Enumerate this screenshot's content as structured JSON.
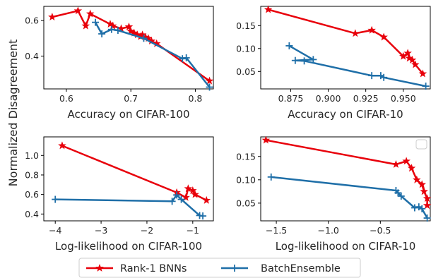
{
  "figure": {
    "ylabel": "Normalized Disagreement"
  },
  "legend": {
    "position": "bottom-center",
    "entries": [
      {
        "label": "Rank-1 BNNs",
        "color": "#e8000b",
        "marker": "star"
      },
      {
        "label": "BatchEnsemble",
        "color": "#1f6fa8",
        "marker": "plus"
      }
    ]
  },
  "chart_data": [
    {
      "type": "line",
      "xlabel": "Accuracy on CIFAR-100",
      "ylabel": "Normalized Disagreement",
      "xlim": [
        0.565,
        0.828
      ],
      "ylim": [
        0.215,
        0.68
      ],
      "xticks": [
        {
          "v": 0.6,
          "label": "0.6"
        },
        {
          "v": 0.7,
          "label": "0.7"
        },
        {
          "v": 0.8,
          "label": "0.8"
        }
      ],
      "yticks": [
        {
          "v": 0.4,
          "label": "0.4"
        },
        {
          "v": 0.6,
          "label": "0.6"
        }
      ],
      "legend_box": false,
      "series": [
        {
          "name": "Rank-1 BNNs",
          "color": "#e8000b",
          "marker": "star",
          "points": [
            [
              0.578,
              0.62
            ],
            [
              0.618,
              0.655
            ],
            [
              0.63,
              0.57
            ],
            [
              0.637,
              0.638
            ],
            [
              0.668,
              0.58
            ],
            [
              0.672,
              0.57
            ],
            [
              0.685,
              0.555
            ],
            [
              0.697,
              0.565
            ],
            [
              0.7,
              0.54
            ],
            [
              0.705,
              0.53
            ],
            [
              0.71,
              0.52
            ],
            [
              0.715,
              0.51
            ],
            [
              0.718,
              0.52
            ],
            [
              0.723,
              0.505
            ],
            [
              0.727,
              0.5
            ],
            [
              0.732,
              0.485
            ],
            [
              0.74,
              0.47
            ],
            [
              0.822,
              0.26
            ]
          ]
        },
        {
          "name": "BatchEnsemble",
          "color": "#1f6fa8",
          "marker": "plus",
          "points": [
            [
              0.645,
              0.59
            ],
            [
              0.655,
              0.525
            ],
            [
              0.67,
              0.55
            ],
            [
              0.68,
              0.545
            ],
            [
              0.72,
              0.5
            ],
            [
              0.78,
              0.385
            ],
            [
              0.786,
              0.39
            ],
            [
              0.822,
              0.225
            ]
          ]
        }
      ]
    },
    {
      "type": "line",
      "xlabel": "Accuracy on CIFAR-10",
      "ylabel": "",
      "xlim": [
        0.855,
        0.968
      ],
      "ylim": [
        0.012,
        0.192
      ],
      "xticks": [
        {
          "v": 0.875,
          "label": "0.875"
        },
        {
          "v": 0.9,
          "label": "0.900"
        },
        {
          "v": 0.925,
          "label": "0.925"
        },
        {
          "v": 0.95,
          "label": "0.950"
        }
      ],
      "yticks": [
        {
          "v": 0.05,
          "label": "0.05"
        },
        {
          "v": 0.1,
          "label": "0.10"
        },
        {
          "v": 0.15,
          "label": "0.15"
        }
      ],
      "legend_box": false,
      "series": [
        {
          "name": "Rank-1 BNNs",
          "color": "#e8000b",
          "marker": "star",
          "points": [
            [
              0.86,
              0.185
            ],
            [
              0.918,
              0.133
            ],
            [
              0.929,
              0.14
            ],
            [
              0.937,
              0.125
            ],
            [
              0.95,
              0.083
            ],
            [
              0.953,
              0.09
            ],
            [
              0.954,
              0.079
            ],
            [
              0.956,
              0.075
            ],
            [
              0.958,
              0.065
            ],
            [
              0.963,
              0.045
            ]
          ]
        },
        {
          "name": "BatchEnsemble",
          "color": "#1f6fa8",
          "marker": "plus",
          "points": [
            [
              0.874,
              0.106
            ],
            [
              0.89,
              0.076
            ],
            [
              0.878,
              0.074
            ],
            [
              0.884,
              0.073
            ],
            [
              0.929,
              0.041
            ],
            [
              0.935,
              0.041
            ],
            [
              0.937,
              0.037
            ],
            [
              0.965,
              0.018
            ]
          ]
        }
      ]
    },
    {
      "type": "line",
      "xlabel": "Log-likelihood on CIFAR-100",
      "ylabel": "",
      "xlim": [
        -4.25,
        -0.55
      ],
      "ylim": [
        0.33,
        1.19
      ],
      "xticks": [
        {
          "v": -4,
          "label": "−4"
        },
        {
          "v": -3,
          "label": "−3"
        },
        {
          "v": -2,
          "label": "−2"
        },
        {
          "v": -1,
          "label": "−1"
        }
      ],
      "yticks": [
        {
          "v": 0.4,
          "label": "0.4"
        },
        {
          "v": 0.6,
          "label": "0.6"
        },
        {
          "v": 0.8,
          "label": "0.8"
        },
        {
          "v": 1.0,
          "label": "1.0"
        }
      ],
      "legend_box": false,
      "series": [
        {
          "name": "Rank-1 BNNs",
          "color": "#e8000b",
          "marker": "star",
          "points": [
            [
              -3.85,
              1.1
            ],
            [
              -1.35,
              0.62
            ],
            [
              -1.15,
              0.57
            ],
            [
              -1.1,
              0.66
            ],
            [
              -1.0,
              0.64
            ],
            [
              -0.95,
              0.6
            ],
            [
              -0.7,
              0.54
            ]
          ]
        },
        {
          "name": "BatchEnsemble",
          "color": "#1f6fa8",
          "marker": "plus",
          "points": [
            [
              -4.0,
              0.55
            ],
            [
              -1.45,
              0.53
            ],
            [
              -1.35,
              0.595
            ],
            [
              -1.25,
              0.55
            ],
            [
              -0.85,
              0.385
            ],
            [
              -0.78,
              0.38
            ]
          ]
        }
      ]
    },
    {
      "type": "line",
      "xlabel": "Log-likelihood on CIFAR-10",
      "ylabel": "",
      "xlim": [
        -1.65,
        -0.02
      ],
      "ylim": [
        0.012,
        0.192
      ],
      "xticks": [
        {
          "v": -1.5,
          "label": "−1.5"
        },
        {
          "v": -1.0,
          "label": "−1.0"
        },
        {
          "v": -0.5,
          "label": "−0.5"
        }
      ],
      "yticks": [
        {
          "v": 0.05,
          "label": "0.05"
        },
        {
          "v": 0.1,
          "label": "0.10"
        },
        {
          "v": 0.15,
          "label": "0.15"
        }
      ],
      "legend_box": true,
      "series": [
        {
          "name": "Rank-1 BNNs",
          "color": "#e8000b",
          "marker": "star",
          "points": [
            [
              -1.6,
              0.185
            ],
            [
              -0.35,
              0.133
            ],
            [
              -0.25,
              0.14
            ],
            [
              -0.2,
              0.125
            ],
            [
              -0.15,
              0.1
            ],
            [
              -0.1,
              0.09
            ],
            [
              -0.08,
              0.075
            ],
            [
              -0.05,
              0.06
            ],
            [
              -0.05,
              0.045
            ]
          ]
        },
        {
          "name": "BatchEnsemble",
          "color": "#1f6fa8",
          "marker": "plus",
          "points": [
            [
              -1.55,
              0.106
            ],
            [
              -0.35,
              0.077
            ],
            [
              -0.33,
              0.072
            ],
            [
              -0.3,
              0.065
            ],
            [
              -0.17,
              0.04
            ],
            [
              -0.13,
              0.042
            ],
            [
              -0.1,
              0.038
            ],
            [
              -0.05,
              0.018
            ]
          ]
        }
      ]
    }
  ]
}
